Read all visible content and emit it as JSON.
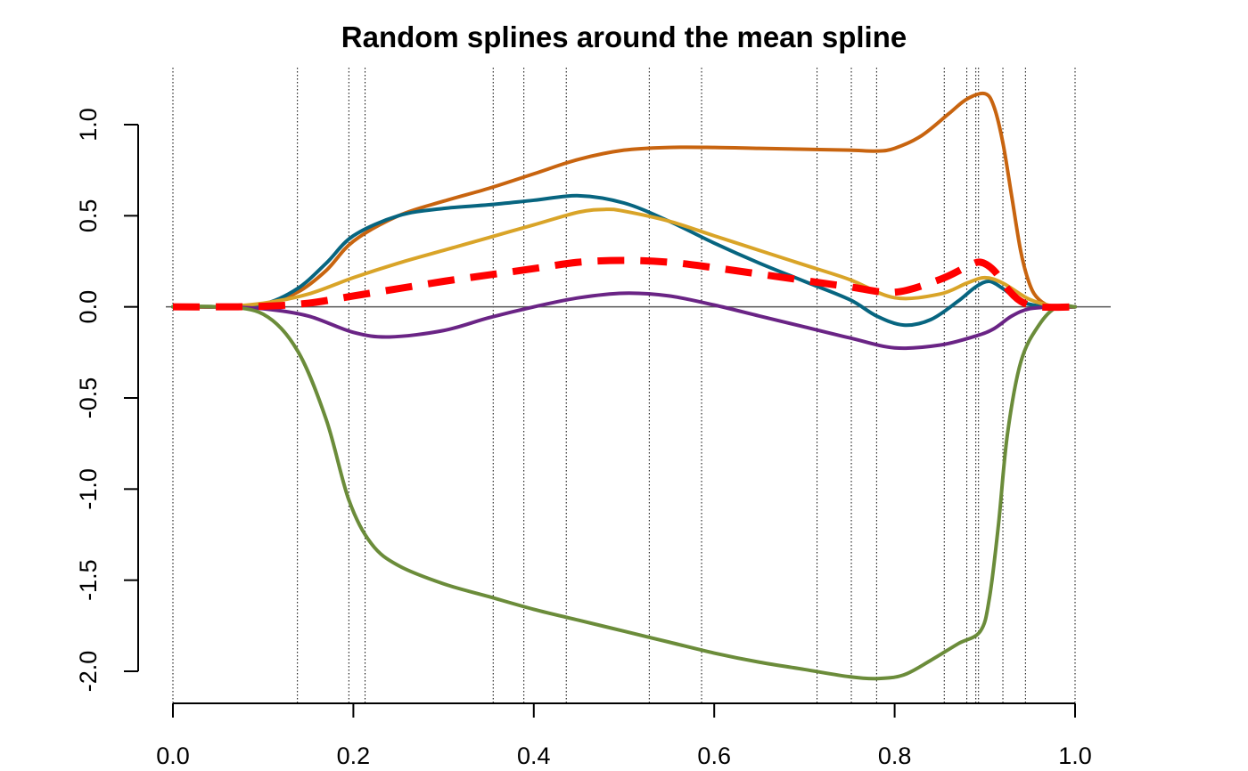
{
  "chart_data": {
    "type": "line",
    "title": "Random splines around the mean spline",
    "xlabel": "",
    "ylabel": "",
    "xlim": [
      0,
      1
    ],
    "ylim": [
      -2.0,
      1.0
    ],
    "x_ticks": [
      0.0,
      0.2,
      0.4,
      0.6,
      0.8,
      1.0
    ],
    "x_tick_labels": [
      "0.0",
      "0.2",
      "0.4",
      "0.6",
      "0.8",
      "1.0"
    ],
    "y_ticks": [
      1.0,
      0.5,
      0.0,
      -0.5,
      -1.0,
      -1.5,
      -2.0
    ],
    "y_tick_labels": [
      "1.0",
      "0.5",
      "0.0",
      "-0.5",
      "-1.0",
      "-1.5",
      "-2.0"
    ],
    "grid": false,
    "horizontal_reference_line": 0,
    "knots": [
      0.0,
      0.138,
      0.195,
      0.213,
      0.355,
      0.389,
      0.436,
      0.528,
      0.586,
      0.714,
      0.752,
      0.78,
      0.855,
      0.88,
      0.89,
      0.893,
      0.92,
      0.945,
      1.0
    ],
    "series": [
      {
        "color": "#C8640F",
        "style": "solid",
        "x": [
          0,
          0.05,
          0.1,
          0.138,
          0.17,
          0.2,
          0.25,
          0.3,
          0.35,
          0.4,
          0.45,
          0.5,
          0.55,
          0.6,
          0.65,
          0.7,
          0.75,
          0.78,
          0.8,
          0.83,
          0.86,
          0.88,
          0.9,
          0.91,
          0.92,
          0.93,
          0.94,
          0.95,
          0.96,
          0.975,
          1.0
        ],
        "y": [
          0,
          0,
          0.015,
          0.08,
          0.2,
          0.36,
          0.5,
          0.58,
          0.65,
          0.73,
          0.81,
          0.86,
          0.875,
          0.875,
          0.87,
          0.865,
          0.86,
          0.855,
          0.87,
          0.94,
          1.06,
          1.14,
          1.17,
          1.1,
          0.9,
          0.6,
          0.3,
          0.12,
          0.04,
          0,
          0
        ]
      },
      {
        "color": "#076580",
        "style": "solid",
        "x": [
          0,
          0.05,
          0.1,
          0.138,
          0.17,
          0.2,
          0.25,
          0.3,
          0.35,
          0.4,
          0.45,
          0.5,
          0.55,
          0.6,
          0.65,
          0.7,
          0.75,
          0.78,
          0.81,
          0.84,
          0.87,
          0.89,
          0.905,
          0.92,
          0.94,
          0.96,
          0.98,
          1.0
        ],
        "y": [
          0,
          0,
          0.015,
          0.1,
          0.24,
          0.39,
          0.5,
          0.54,
          0.56,
          0.585,
          0.61,
          0.57,
          0.47,
          0.35,
          0.24,
          0.14,
          0.04,
          -0.05,
          -0.1,
          -0.07,
          0.03,
          0.11,
          0.14,
          0.1,
          0.03,
          0.005,
          0,
          0
        ]
      },
      {
        "color": "#D9A428",
        "style": "solid",
        "x": [
          0,
          0.05,
          0.1,
          0.15,
          0.2,
          0.25,
          0.3,
          0.35,
          0.4,
          0.45,
          0.48,
          0.5,
          0.55,
          0.6,
          0.65,
          0.7,
          0.75,
          0.8,
          0.85,
          0.88,
          0.9,
          0.92,
          0.95,
          0.98,
          1.0
        ],
        "y": [
          0,
          0,
          0.02,
          0.07,
          0.16,
          0.24,
          0.31,
          0.38,
          0.45,
          0.52,
          0.535,
          0.525,
          0.47,
          0.39,
          0.31,
          0.23,
          0.15,
          0.05,
          0.07,
          0.13,
          0.16,
          0.13,
          0.04,
          0,
          0
        ]
      },
      {
        "color": "#6A2485",
        "style": "solid",
        "x": [
          0,
          0.05,
          0.1,
          0.15,
          0.2,
          0.24,
          0.3,
          0.35,
          0.4,
          0.45,
          0.5,
          0.55,
          0.6,
          0.65,
          0.7,
          0.75,
          0.8,
          0.85,
          0.89,
          0.91,
          0.93,
          0.95,
          0.98,
          1.0
        ],
        "y": [
          0,
          0,
          -0.01,
          -0.05,
          -0.14,
          -0.165,
          -0.13,
          -0.06,
          0.0,
          0.05,
          0.075,
          0.06,
          0.01,
          -0.05,
          -0.11,
          -0.17,
          -0.225,
          -0.21,
          -0.16,
          -0.12,
          -0.05,
          -0.01,
          0,
          0
        ]
      },
      {
        "color": "#6B8C3A",
        "style": "solid",
        "x": [
          0,
          0.05,
          0.1,
          0.138,
          0.17,
          0.195,
          0.22,
          0.25,
          0.3,
          0.35,
          0.4,
          0.45,
          0.5,
          0.55,
          0.6,
          0.65,
          0.7,
          0.75,
          0.78,
          0.81,
          0.84,
          0.87,
          0.895,
          0.905,
          0.915,
          0.925,
          0.94,
          0.96,
          0.98,
          1.0
        ],
        "y": [
          0,
          0,
          -0.04,
          -0.24,
          -0.62,
          -1.06,
          -1.3,
          -1.42,
          -1.52,
          -1.59,
          -1.66,
          -1.72,
          -1.78,
          -1.84,
          -1.9,
          -1.95,
          -1.99,
          -2.03,
          -2.04,
          -2.02,
          -1.94,
          -1.85,
          -1.78,
          -1.6,
          -1.2,
          -0.7,
          -0.3,
          -0.1,
          0,
          0
        ]
      },
      {
        "color": "#FF0000",
        "style": "dashed",
        "x": [
          0,
          0.05,
          0.1,
          0.15,
          0.2,
          0.25,
          0.3,
          0.35,
          0.4,
          0.45,
          0.5,
          0.55,
          0.6,
          0.65,
          0.7,
          0.75,
          0.8,
          0.85,
          0.88,
          0.895,
          0.91,
          0.925,
          0.94,
          0.96,
          1.0
        ],
        "y": [
          0,
          0,
          0.003,
          0.02,
          0.06,
          0.1,
          0.14,
          0.175,
          0.21,
          0.245,
          0.255,
          0.245,
          0.215,
          0.18,
          0.145,
          0.11,
          0.08,
          0.15,
          0.22,
          0.245,
          0.2,
          0.1,
          0.03,
          0,
          0
        ]
      }
    ]
  }
}
